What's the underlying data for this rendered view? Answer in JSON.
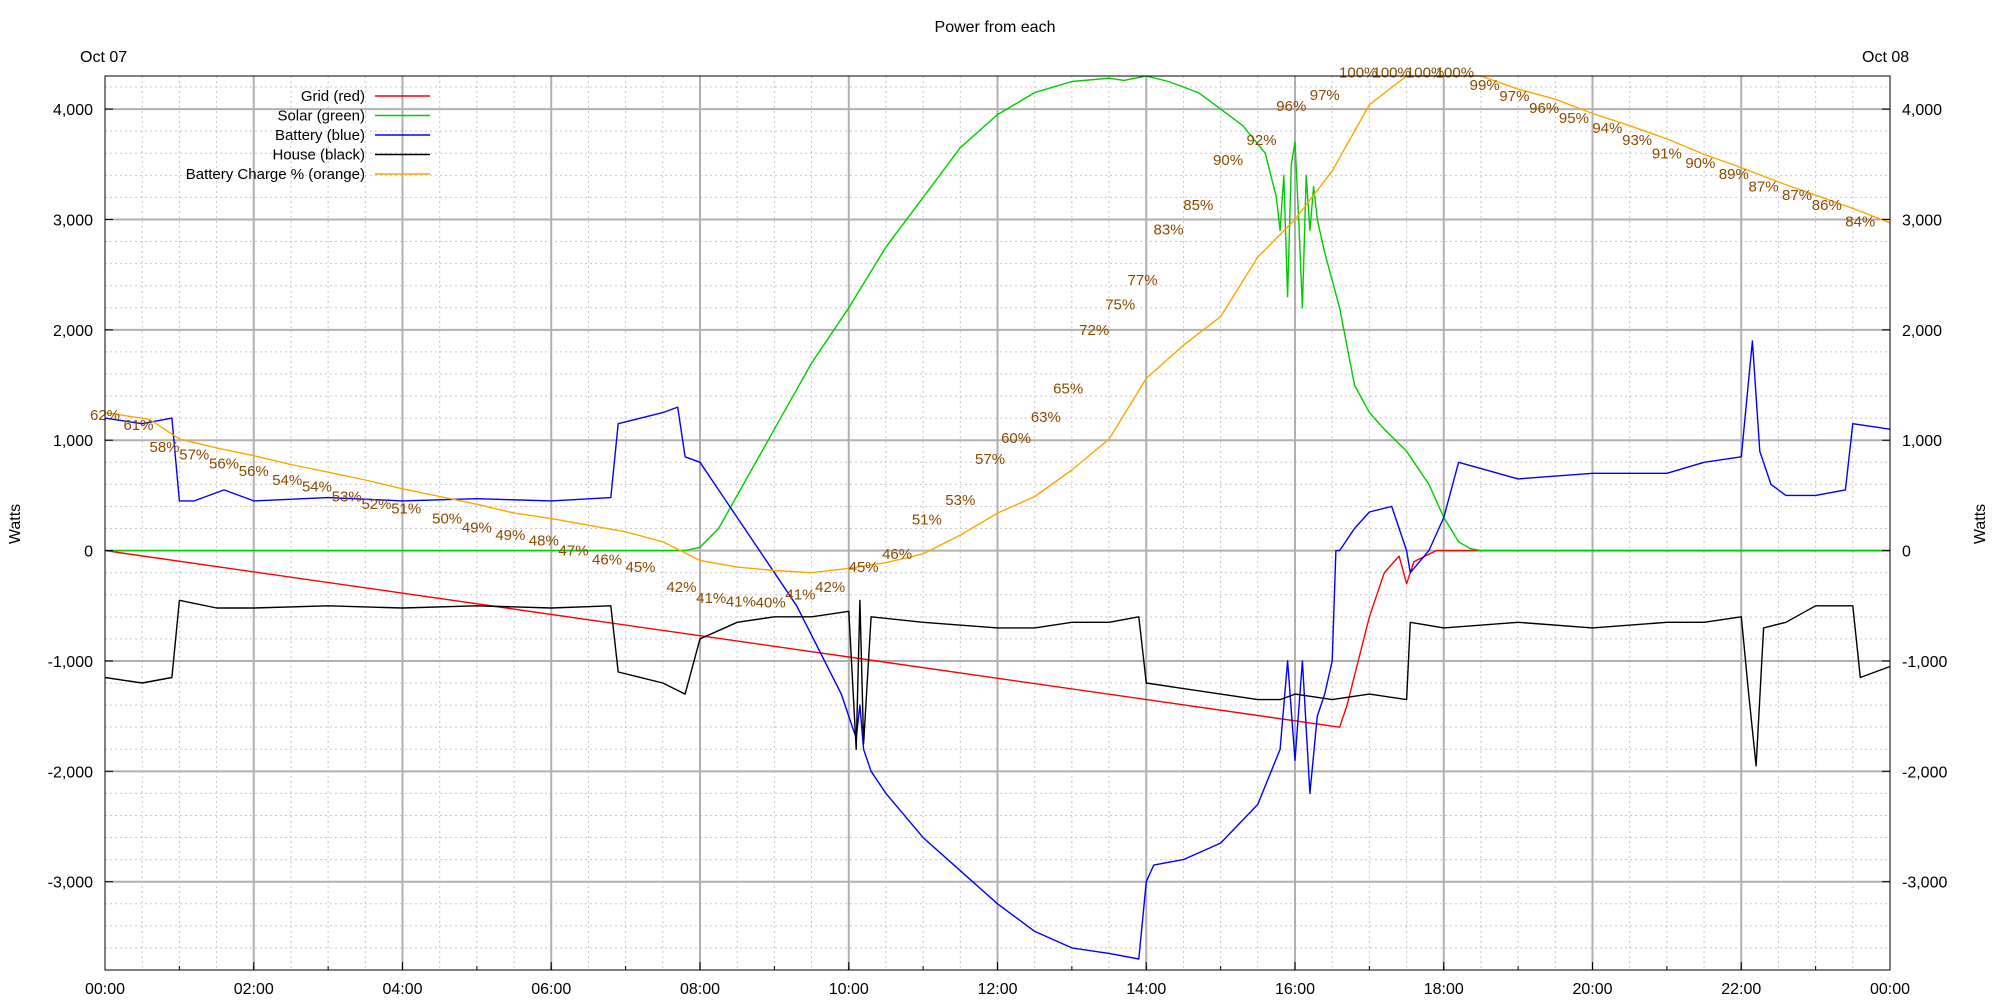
{
  "chart_data": {
    "type": "line",
    "title": "Power from each",
    "date_left": "Oct 07",
    "date_right": "Oct 08",
    "xlabel": "",
    "ylabel": "Watts",
    "y2label": "Watts",
    "xlim": [
      0,
      24
    ],
    "ylim": [
      -3800,
      4300
    ],
    "x_ticks": [
      {
        "v": 0,
        "label": "00:00"
      },
      {
        "v": 2,
        "label": "02:00"
      },
      {
        "v": 4,
        "label": "04:00"
      },
      {
        "v": 6,
        "label": "06:00"
      },
      {
        "v": 8,
        "label": "08:00"
      },
      {
        "v": 10,
        "label": "10:00"
      },
      {
        "v": 12,
        "label": "12:00"
      },
      {
        "v": 14,
        "label": "14:00"
      },
      {
        "v": 16,
        "label": "16:00"
      },
      {
        "v": 18,
        "label": "18:00"
      },
      {
        "v": 20,
        "label": "20:00"
      },
      {
        "v": 22,
        "label": "22:00"
      },
      {
        "v": 24,
        "label": "00:00"
      }
    ],
    "y_ticks": [
      {
        "v": 4000,
        "label": "4,000"
      },
      {
        "v": 3000,
        "label": "3,000"
      },
      {
        "v": 2000,
        "label": "2,000"
      },
      {
        "v": 1000,
        "label": "1,000"
      },
      {
        "v": 0,
        "label": "0"
      },
      {
        "v": -1000,
        "label": "-1,000"
      },
      {
        "v": -2000,
        "label": "-2,000"
      },
      {
        "v": -3000,
        "label": "-3,000"
      }
    ],
    "grid": true,
    "legend_position": "top-left",
    "series": [
      {
        "name": "Grid (red)",
        "color": "#ff0000",
        "x": [
          0,
          16.6,
          16.7,
          16.85,
          17.0,
          17.2,
          17.4,
          17.5,
          17.6,
          17.9,
          18.2,
          24
        ],
        "y": [
          0,
          -1600,
          -1400,
          -1000,
          -600,
          -200,
          -50,
          -300,
          -100,
          0,
          0,
          0
        ]
      },
      {
        "name": "Solar (green)",
        "color": "#00cc00",
        "x": [
          0,
          7.8,
          8.0,
          8.25,
          8.5,
          9.0,
          9.5,
          10.0,
          10.5,
          11.0,
          11.5,
          12.0,
          12.5,
          13.0,
          13.5,
          13.7,
          14.0,
          14.3,
          14.7,
          15.0,
          15.3,
          15.6,
          15.75,
          15.8,
          15.85,
          15.9,
          15.95,
          16.0,
          16.05,
          16.1,
          16.15,
          16.2,
          16.25,
          16.3,
          16.4,
          16.6,
          16.8,
          17.0,
          17.2,
          17.5,
          17.8,
          18.0,
          18.2,
          18.35,
          18.5,
          24
        ],
        "y": [
          0,
          0,
          30,
          200,
          500,
          1100,
          1700,
          2200,
          2750,
          3200,
          3650,
          3950,
          4150,
          4250,
          4280,
          4260,
          4300,
          4250,
          4150,
          4000,
          3850,
          3600,
          3200,
          2900,
          3400,
          2300,
          3500,
          3700,
          3000,
          2200,
          3400,
          2900,
          3300,
          3000,
          2700,
          2200,
          1500,
          1250,
          1100,
          900,
          600,
          300,
          80,
          20,
          0,
          0
        ]
      },
      {
        "name": "Battery (blue)",
        "color": "#0000ff",
        "x": [
          0,
          0.5,
          0.9,
          1.0,
          1.2,
          1.6,
          2.0,
          3.0,
          4.0,
          5.0,
          6.0,
          6.8,
          6.9,
          7.5,
          7.7,
          7.8,
          8.0,
          8.3,
          8.6,
          9.0,
          9.3,
          9.6,
          9.9,
          10.1,
          10.15,
          10.2,
          10.3,
          10.5,
          11.0,
          11.5,
          12.0,
          12.5,
          13.0,
          13.5,
          13.9,
          14.0,
          14.1,
          14.5,
          15.0,
          15.5,
          15.8,
          15.9,
          16.0,
          16.1,
          16.2,
          16.3,
          16.4,
          16.5,
          16.55,
          16.6,
          16.8,
          17.0,
          17.3,
          17.5,
          17.55,
          17.8,
          18.0,
          18.2,
          19.0,
          20.0,
          21.0,
          21.5,
          22.0,
          22.15,
          22.25,
          22.4,
          22.6,
          23.0,
          23.4,
          23.5,
          24
        ],
        "y": [
          1200,
          1150,
          1200,
          450,
          450,
          550,
          450,
          480,
          450,
          470,
          450,
          480,
          1150,
          1250,
          1300,
          850,
          800,
          500,
          200,
          -200,
          -500,
          -900,
          -1300,
          -1700,
          -1400,
          -1800,
          -2000,
          -2200,
          -2600,
          -2900,
          -3200,
          -3450,
          -3600,
          -3650,
          -3700,
          -3000,
          -2850,
          -2800,
          -2650,
          -2300,
          -1800,
          -1000,
          -1900,
          -1000,
          -2200,
          -1500,
          -1300,
          -1000,
          0,
          0,
          200,
          350,
          400,
          0,
          -200,
          0,
          300,
          800,
          650,
          700,
          700,
          800,
          850,
          1900,
          900,
          600,
          500,
          500,
          550,
          1150,
          1100
        ]
      },
      {
        "name": "House (black)",
        "color": "#000000",
        "x": [
          0,
          0.5,
          0.9,
          1.0,
          1.5,
          2.0,
          3.0,
          4.0,
          5.0,
          6.0,
          6.8,
          6.9,
          7.5,
          7.8,
          8.0,
          8.5,
          9.0,
          9.5,
          10.0,
          10.1,
          10.15,
          10.2,
          10.3,
          11.0,
          12.0,
          12.5,
          13.0,
          13.5,
          13.9,
          14.0,
          14.5,
          15.0,
          15.5,
          15.8,
          16.0,
          16.5,
          17.0,
          17.5,
          17.55,
          18.0,
          19.0,
          20.0,
          21.0,
          21.5,
          22.0,
          22.1,
          22.2,
          22.3,
          22.6,
          23.0,
          23.5,
          23.6,
          24
        ],
        "y": [
          -1150,
          -1200,
          -1150,
          -450,
          -520,
          -520,
          -500,
          -520,
          -500,
          -520,
          -500,
          -1100,
          -1200,
          -1300,
          -800,
          -650,
          -600,
          -600,
          -550,
          -1800,
          -450,
          -1750,
          -600,
          -650,
          -700,
          -700,
          -650,
          -650,
          -600,
          -1200,
          -1250,
          -1300,
          -1350,
          -1350,
          -1300,
          -1350,
          -1300,
          -1350,
          -650,
          -700,
          -650,
          -700,
          -650,
          -650,
          -600,
          -1300,
          -1950,
          -700,
          -650,
          -500,
          -500,
          -1150,
          -1050
        ]
      },
      {
        "name": "Battery Charge % (orange)",
        "color": "#ffa500",
        "x": [
          0,
          0.6,
          1.0,
          1.5,
          2.0,
          2.5,
          3.0,
          3.5,
          4.0,
          4.5,
          5.0,
          5.5,
          6.0,
          6.5,
          7.0,
          7.5,
          8.0,
          8.5,
          9.0,
          9.5,
          10.0,
          10.5,
          11.0,
          11.5,
          12.0,
          12.5,
          13.0,
          13.5,
          14.0,
          14.5,
          15.0,
          15.5,
          16.0,
          16.5,
          17.0,
          17.5,
          18.0,
          18.5,
          19.0,
          19.5,
          20.0,
          20.5,
          21.0,
          21.5,
          22.0,
          22.5,
          23.0,
          23.5,
          24
        ],
        "y": [
          1250,
          1190,
          1010,
          930,
          860,
          780,
          710,
          640,
          560,
          490,
          420,
          340,
          290,
          230,
          170,
          80,
          -90,
          -150,
          -180,
          -200,
          -160,
          -110,
          -30,
          140,
          340,
          490,
          730,
          1010,
          1560,
          1860,
          2120,
          2660,
          3000,
          3440,
          4040,
          4300,
          4300,
          4300,
          4180,
          4090,
          3960,
          3850,
          3730,
          3590,
          3470,
          3340,
          3220,
          3100,
          2970
        ]
      }
    ],
    "annotations": [
      {
        "x": 0.0,
        "y": 1230,
        "text": "62%"
      },
      {
        "x": 0.45,
        "y": 1140,
        "text": "61%"
      },
      {
        "x": 0.8,
        "y": 940,
        "text": "58%"
      },
      {
        "x": 1.2,
        "y": 870,
        "text": "57%"
      },
      {
        "x": 1.6,
        "y": 790,
        "text": "56%"
      },
      {
        "x": 2.0,
        "y": 720,
        "text": "56%"
      },
      {
        "x": 2.45,
        "y": 640,
        "text": "54%"
      },
      {
        "x": 2.85,
        "y": 580,
        "text": "54%"
      },
      {
        "x": 3.25,
        "y": 490,
        "text": "53%"
      },
      {
        "x": 3.65,
        "y": 420,
        "text": "52%"
      },
      {
        "x": 4.05,
        "y": 380,
        "text": "51%"
      },
      {
        "x": 4.6,
        "y": 290,
        "text": "50%"
      },
      {
        "x": 5.0,
        "y": 210,
        "text": "49%"
      },
      {
        "x": 5.45,
        "y": 140,
        "text": "49%"
      },
      {
        "x": 5.9,
        "y": 90,
        "text": "48%"
      },
      {
        "x": 6.3,
        "y": 0,
        "text": "47%"
      },
      {
        "x": 6.75,
        "y": -80,
        "text": "46%"
      },
      {
        "x": 7.2,
        "y": -150,
        "text": "45%"
      },
      {
        "x": 7.75,
        "y": -330,
        "text": "42%"
      },
      {
        "x": 8.15,
        "y": -430,
        "text": "41%"
      },
      {
        "x": 8.55,
        "y": -460,
        "text": "41%"
      },
      {
        "x": 8.95,
        "y": -470,
        "text": "40%"
      },
      {
        "x": 9.35,
        "y": -400,
        "text": "41%"
      },
      {
        "x": 9.75,
        "y": -330,
        "text": "42%"
      },
      {
        "x": 10.2,
        "y": -150,
        "text": "45%"
      },
      {
        "x": 10.65,
        "y": -30,
        "text": "46%"
      },
      {
        "x": 11.05,
        "y": 280,
        "text": "51%"
      },
      {
        "x": 11.5,
        "y": 460,
        "text": "53%"
      },
      {
        "x": 11.9,
        "y": 830,
        "text": "57%"
      },
      {
        "x": 12.25,
        "y": 1020,
        "text": "60%"
      },
      {
        "x": 12.65,
        "y": 1210,
        "text": "63%"
      },
      {
        "x": 12.95,
        "y": 1470,
        "text": "65%"
      },
      {
        "x": 13.3,
        "y": 2000,
        "text": "72%"
      },
      {
        "x": 13.65,
        "y": 2230,
        "text": "75%"
      },
      {
        "x": 13.95,
        "y": 2450,
        "text": "77%"
      },
      {
        "x": 14.3,
        "y": 2910,
        "text": "83%"
      },
      {
        "x": 14.7,
        "y": 3130,
        "text": "85%"
      },
      {
        "x": 15.1,
        "y": 3540,
        "text": "90%"
      },
      {
        "x": 15.55,
        "y": 3720,
        "text": "92%"
      },
      {
        "x": 15.95,
        "y": 4030,
        "text": "96%"
      },
      {
        "x": 16.4,
        "y": 4130,
        "text": "97%"
      },
      {
        "x": 16.85,
        "y": 4330,
        "text": "100%"
      },
      {
        "x": 17.3,
        "y": 4330,
        "text": "100%"
      },
      {
        "x": 17.75,
        "y": 4330,
        "text": "100%"
      },
      {
        "x": 18.15,
        "y": 4330,
        "text": "100%"
      },
      {
        "x": 18.55,
        "y": 4220,
        "text": "99%"
      },
      {
        "x": 18.95,
        "y": 4120,
        "text": "97%"
      },
      {
        "x": 19.35,
        "y": 4010,
        "text": "96%"
      },
      {
        "x": 19.75,
        "y": 3920,
        "text": "95%"
      },
      {
        "x": 20.2,
        "y": 3830,
        "text": "94%"
      },
      {
        "x": 20.6,
        "y": 3720,
        "text": "93%"
      },
      {
        "x": 21.0,
        "y": 3600,
        "text": "91%"
      },
      {
        "x": 21.45,
        "y": 3510,
        "text": "90%"
      },
      {
        "x": 21.9,
        "y": 3410,
        "text": "89%"
      },
      {
        "x": 22.3,
        "y": 3300,
        "text": "87%"
      },
      {
        "x": 22.75,
        "y": 3220,
        "text": "87%"
      },
      {
        "x": 23.15,
        "y": 3130,
        "text": "86%"
      },
      {
        "x": 23.6,
        "y": 2980,
        "text": "84%"
      }
    ]
  }
}
